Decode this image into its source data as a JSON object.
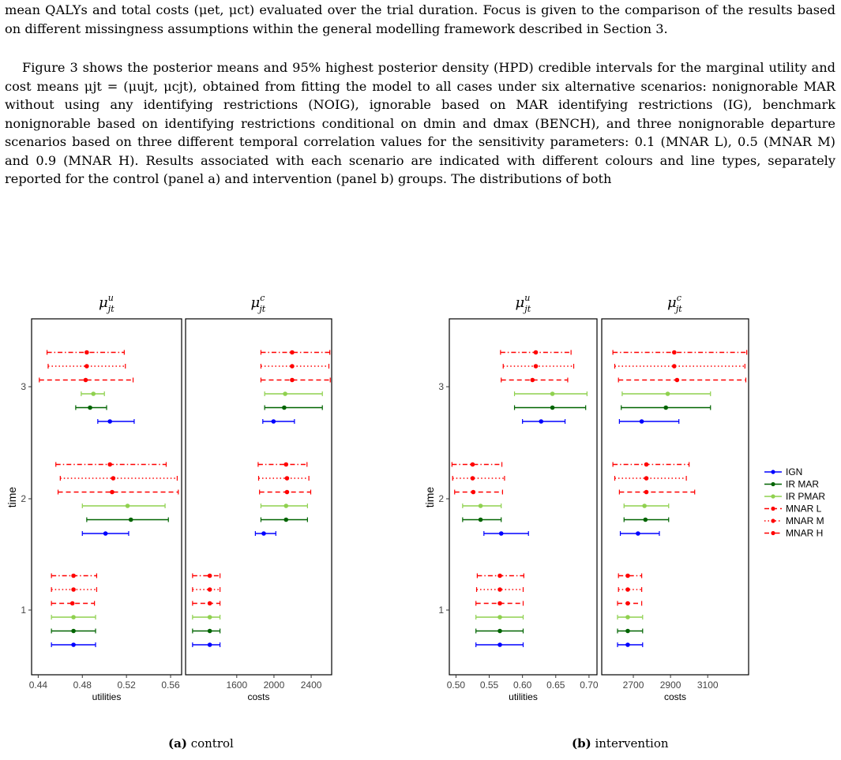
{
  "text": {
    "para1": "mean QALYs and total costs (μet, μct) evaluated over the trial duration. Focus is given to the comparison of the results based on different missingness assumptions within the general modelling framework described in Section 3.",
    "para2": "Figure 3 shows the posterior means and 95% highest posterior density (HPD) credible intervals for the marginal utility and cost means μjt = (μujt, μcjt), obtained from fitting the model to all cases under six alternative scenarios: nonignorable MAR without using any identifying restrictions (NOIG), ignorable based on MAR identifying restrictions (IG), benchmark nonignorable based on identifying restrictions conditional on dmin and dmax (BENCH), and three nonignorable departure scenarios based on three different temporal correlation values for the sensitivity parameters: 0.1 (MNAR L), 0.5 (MNAR M) and 0.9 (MNAR H). Results associated with each scenario are indicated with different colours and line types, separately reported for the control (panel a) and intervention (panel b) groups. The distributions of both"
  },
  "captions": {
    "a_label": "(a)",
    "a_text": "control",
    "b_label": "(b)",
    "b_text": "intervention"
  },
  "legend": [
    {
      "name": "IGN",
      "color": "#0000ff",
      "dash": "solid"
    },
    {
      "name": "IR MAR",
      "color": "#006400",
      "dash": "solid"
    },
    {
      "name": "IR PMAR",
      "color": "#8fd14f",
      "dash": "solid"
    },
    {
      "name": "MNAR L",
      "color": "#ff0000",
      "dash": "dashed"
    },
    {
      "name": "MNAR M",
      "color": "#ff0000",
      "dash": "dotted"
    },
    {
      "name": "MNAR H",
      "color": "#ff0000",
      "dash": "dotdash"
    }
  ],
  "chart_data": [
    {
      "type": "forest",
      "panel": "control-utilities",
      "title": "μujt",
      "xlabel": "utilities",
      "ylabel": "time",
      "xlim": [
        0.434,
        0.57
      ],
      "xticks": [
        "0.44",
        "0.48",
        "0.52",
        "0.56"
      ],
      "yticks": [
        "1",
        "2",
        "3"
      ],
      "series": [
        {
          "name": "IGN",
          "points": [
            {
              "time": 1,
              "mean": 0.472,
              "lo": 0.452,
              "hi": 0.492
            },
            {
              "time": 2,
              "mean": 0.501,
              "lo": 0.48,
              "hi": 0.522
            },
            {
              "time": 3,
              "mean": 0.505,
              "lo": 0.494,
              "hi": 0.527
            }
          ]
        },
        {
          "name": "IR MAR",
          "points": [
            {
              "time": 1,
              "mean": 0.472,
              "lo": 0.452,
              "hi": 0.492
            },
            {
              "time": 2,
              "mean": 0.524,
              "lo": 0.484,
              "hi": 0.558
            },
            {
              "time": 3,
              "mean": 0.487,
              "lo": 0.474,
              "hi": 0.502
            }
          ]
        },
        {
          "name": "IR PMAR",
          "points": [
            {
              "time": 1,
              "mean": 0.472,
              "lo": 0.452,
              "hi": 0.492
            },
            {
              "time": 2,
              "mean": 0.521,
              "lo": 0.48,
              "hi": 0.555
            },
            {
              "time": 3,
              "mean": 0.49,
              "lo": 0.479,
              "hi": 0.5
            }
          ]
        },
        {
          "name": "MNAR L",
          "points": [
            {
              "time": 1,
              "mean": 0.471,
              "lo": 0.452,
              "hi": 0.491
            },
            {
              "time": 2,
              "mean": 0.507,
              "lo": 0.458,
              "hi": 0.567
            },
            {
              "time": 3,
              "mean": 0.483,
              "lo": 0.441,
              "hi": 0.526
            }
          ]
        },
        {
          "name": "MNAR M",
          "points": [
            {
              "time": 1,
              "mean": 0.472,
              "lo": 0.452,
              "hi": 0.493
            },
            {
              "time": 2,
              "mean": 0.508,
              "lo": 0.46,
              "hi": 0.566
            },
            {
              "time": 3,
              "mean": 0.484,
              "lo": 0.449,
              "hi": 0.519
            }
          ]
        },
        {
          "name": "MNAR H",
          "points": [
            {
              "time": 1,
              "mean": 0.472,
              "lo": 0.452,
              "hi": 0.493
            },
            {
              "time": 2,
              "mean": 0.505,
              "lo": 0.456,
              "hi": 0.556
            },
            {
              "time": 3,
              "mean": 0.484,
              "lo": 0.448,
              "hi": 0.518
            }
          ]
        }
      ]
    },
    {
      "type": "forest",
      "panel": "control-costs",
      "title": "μcjt",
      "xlabel": "costs",
      "ylabel": "",
      "xlim": [
        1050,
        2620
      ],
      "xticks": [
        "1600",
        "2000",
        "2400"
      ],
      "yticks": [],
      "series": [
        {
          "name": "IGN",
          "points": [
            {
              "time": 1,
              "mean": 1310,
              "lo": 1125,
              "hi": 1420
            },
            {
              "time": 2,
              "mean": 1890,
              "lo": 1800,
              "hi": 2020
            },
            {
              "time": 3,
              "mean": 1995,
              "lo": 1880,
              "hi": 2220
            }
          ]
        },
        {
          "name": "IR MAR",
          "points": [
            {
              "time": 1,
              "mean": 1310,
              "lo": 1125,
              "hi": 1420
            },
            {
              "time": 2,
              "mean": 2130,
              "lo": 1860,
              "hi": 2360
            },
            {
              "time": 3,
              "mean": 2110,
              "lo": 1900,
              "hi": 2520
            }
          ]
        },
        {
          "name": "IR PMAR",
          "points": [
            {
              "time": 1,
              "mean": 1310,
              "lo": 1125,
              "hi": 1420
            },
            {
              "time": 2,
              "mean": 2130,
              "lo": 1860,
              "hi": 2360
            },
            {
              "time": 3,
              "mean": 2120,
              "lo": 1900,
              "hi": 2520
            }
          ]
        },
        {
          "name": "MNAR L",
          "points": [
            {
              "time": 1,
              "mean": 1310,
              "lo": 1125,
              "hi": 1420
            },
            {
              "time": 2,
              "mean": 2140,
              "lo": 1845,
              "hi": 2395
            },
            {
              "time": 3,
              "mean": 2195,
              "lo": 1860,
              "hi": 2605
            }
          ]
        },
        {
          "name": "MNAR M",
          "points": [
            {
              "time": 1,
              "mean": 1310,
              "lo": 1125,
              "hi": 1420
            },
            {
              "time": 2,
              "mean": 2140,
              "lo": 1835,
              "hi": 2375
            },
            {
              "time": 3,
              "mean": 2195,
              "lo": 1860,
              "hi": 2590
            }
          ]
        },
        {
          "name": "MNAR H",
          "points": [
            {
              "time": 1,
              "mean": 1310,
              "lo": 1125,
              "hi": 1420
            },
            {
              "time": 2,
              "mean": 2130,
              "lo": 1830,
              "hi": 2355
            },
            {
              "time": 3,
              "mean": 2195,
              "lo": 1860,
              "hi": 2600
            }
          ]
        }
      ]
    },
    {
      "type": "forest",
      "panel": "intervention-utilities",
      "title": "μujt",
      "xlabel": "utilities",
      "ylabel": "time",
      "xlim": [
        0.49,
        0.712
      ],
      "xticks": [
        "0.50",
        "0.55",
        "0.60",
        "0.65",
        "0.70"
      ],
      "yticks": [
        "1",
        "2",
        "3"
      ],
      "series": [
        {
          "name": "IGN",
          "points": [
            {
              "time": 1,
              "mean": 0.566,
              "lo": 0.53,
              "hi": 0.601
            },
            {
              "time": 2,
              "mean": 0.568,
              "lo": 0.542,
              "hi": 0.609
            },
            {
              "time": 3,
              "mean": 0.628,
              "lo": 0.6,
              "hi": 0.664
            }
          ]
        },
        {
          "name": "IR MAR",
          "points": [
            {
              "time": 1,
              "mean": 0.566,
              "lo": 0.53,
              "hi": 0.601
            },
            {
              "time": 2,
              "mean": 0.537,
              "lo": 0.51,
              "hi": 0.568
            },
            {
              "time": 3,
              "mean": 0.645,
              "lo": 0.588,
              "hi": 0.695
            }
          ]
        },
        {
          "name": "IR PMAR",
          "points": [
            {
              "time": 1,
              "mean": 0.566,
              "lo": 0.53,
              "hi": 0.601
            },
            {
              "time": 2,
              "mean": 0.537,
              "lo": 0.51,
              "hi": 0.568
            },
            {
              "time": 3,
              "mean": 0.645,
              "lo": 0.588,
              "hi": 0.697
            }
          ]
        },
        {
          "name": "MNAR L",
          "points": [
            {
              "time": 1,
              "mean": 0.566,
              "lo": 0.53,
              "hi": 0.601
            },
            {
              "time": 2,
              "mean": 0.526,
              "lo": 0.498,
              "hi": 0.57
            },
            {
              "time": 3,
              "mean": 0.615,
              "lo": 0.568,
              "hi": 0.668
            }
          ]
        },
        {
          "name": "MNAR M",
          "points": [
            {
              "time": 1,
              "mean": 0.566,
              "lo": 0.531,
              "hi": 0.601
            },
            {
              "time": 2,
              "mean": 0.525,
              "lo": 0.495,
              "hi": 0.573
            },
            {
              "time": 3,
              "mean": 0.62,
              "lo": 0.571,
              "hi": 0.677
            }
          ]
        },
        {
          "name": "MNAR H",
          "points": [
            {
              "time": 1,
              "mean": 0.566,
              "lo": 0.532,
              "hi": 0.602
            },
            {
              "time": 2,
              "mean": 0.525,
              "lo": 0.494,
              "hi": 0.569
            },
            {
              "time": 3,
              "mean": 0.62,
              "lo": 0.567,
              "hi": 0.673
            }
          ]
        }
      ]
    },
    {
      "type": "forest",
      "panel": "intervention-costs",
      "title": "μcjt",
      "xlabel": "costs",
      "ylabel": "",
      "xlim": [
        2530,
        3320
      ],
      "xticks": [
        "2700",
        "2900",
        "3100"
      ],
      "yticks": [],
      "series": [
        {
          "name": "IGN",
          "points": [
            {
              "time": 1,
              "mean": 2670,
              "lo": 2615,
              "hi": 2750
            },
            {
              "time": 2,
              "mean": 2725,
              "lo": 2630,
              "hi": 2840
            },
            {
              "time": 3,
              "mean": 2745,
              "lo": 2625,
              "hi": 2945
            }
          ]
        },
        {
          "name": "IR MAR",
          "points": [
            {
              "time": 1,
              "mean": 2670,
              "lo": 2615,
              "hi": 2750
            },
            {
              "time": 2,
              "mean": 2765,
              "lo": 2650,
              "hi": 2890
            },
            {
              "time": 3,
              "mean": 2875,
              "lo": 2635,
              "hi": 3115
            }
          ]
        },
        {
          "name": "IR PMAR",
          "points": [
            {
              "time": 1,
              "mean": 2670,
              "lo": 2615,
              "hi": 2750
            },
            {
              "time": 2,
              "mean": 2760,
              "lo": 2650,
              "hi": 2890
            },
            {
              "time": 3,
              "mean": 2885,
              "lo": 2640,
              "hi": 3115
            }
          ]
        },
        {
          "name": "MNAR L",
          "points": [
            {
              "time": 1,
              "mean": 2670,
              "lo": 2615,
              "hi": 2745
            },
            {
              "time": 2,
              "mean": 2770,
              "lo": 2625,
              "hi": 3030
            },
            {
              "time": 3,
              "mean": 2935,
              "lo": 2620,
              "hi": 3305
            }
          ]
        },
        {
          "name": "MNAR M",
          "points": [
            {
              "time": 1,
              "mean": 2670,
              "lo": 2620,
              "hi": 2745
            },
            {
              "time": 2,
              "mean": 2770,
              "lo": 2600,
              "hi": 2985
            },
            {
              "time": 3,
              "mean": 2920,
              "lo": 2600,
              "hi": 3300
            }
          ]
        },
        {
          "name": "MNAR H",
          "points": [
            {
              "time": 1,
              "mean": 2670,
              "lo": 2620,
              "hi": 2745
            },
            {
              "time": 2,
              "mean": 2770,
              "lo": 2590,
              "hi": 3000
            },
            {
              "time": 3,
              "mean": 2920,
              "lo": 2590,
              "hi": 3310
            }
          ]
        }
      ]
    }
  ]
}
